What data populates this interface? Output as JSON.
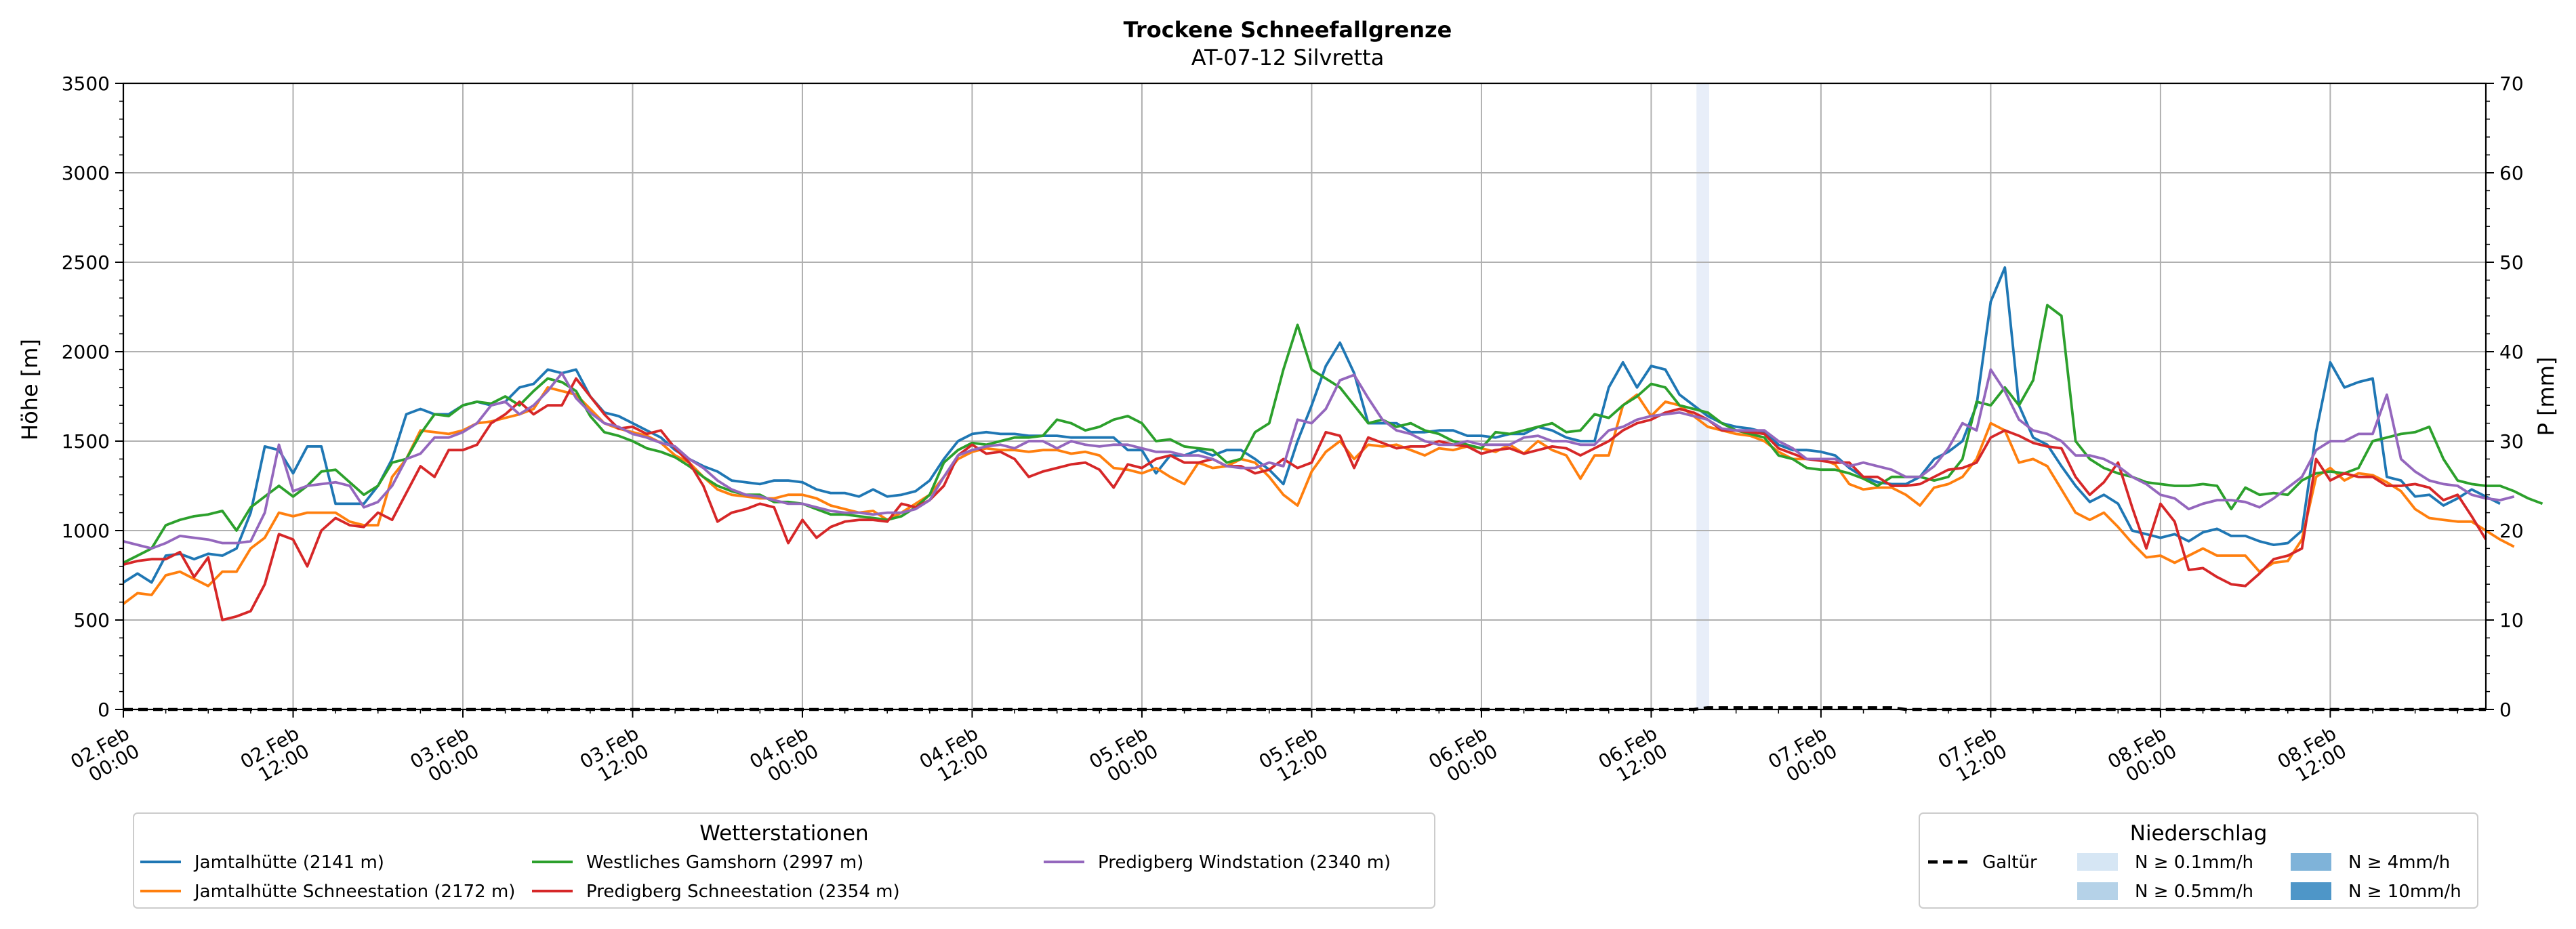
{
  "chart_data": {
    "type": "line",
    "title": "Trockene Schneefallgrenze",
    "subtitle": "AT-07-12 Silvretta",
    "ylabel": "Höhe [m]",
    "y2label": "P [mm]",
    "ylim": [
      0,
      3500
    ],
    "y2lim": [
      0,
      70
    ],
    "yticks": [
      "0",
      "500",
      "1000",
      "1500",
      "2000",
      "2500",
      "3000",
      "3500"
    ],
    "y2ticks": [
      "0",
      "10",
      "20",
      "30",
      "40",
      "50",
      "60",
      "70"
    ],
    "xrange_hours": [
      0,
      167
    ],
    "x_step_hours": 1,
    "xticks": [
      {
        "h": 0,
        "label": [
          "02.Feb",
          "00:00"
        ]
      },
      {
        "h": 12,
        "label": [
          "02.Feb",
          "12:00"
        ]
      },
      {
        "h": 24,
        "label": [
          "03.Feb",
          "00:00"
        ]
      },
      {
        "h": 36,
        "label": [
          "03.Feb",
          "12:00"
        ]
      },
      {
        "h": 48,
        "label": [
          "04.Feb",
          "00:00"
        ]
      },
      {
        "h": 60,
        "label": [
          "04.Feb",
          "12:00"
        ]
      },
      {
        "h": 72,
        "label": [
          "05.Feb",
          "00:00"
        ]
      },
      {
        "h": 84,
        "label": [
          "05.Feb",
          "12:00"
        ]
      },
      {
        "h": 96,
        "label": [
          "06.Feb",
          "00:00"
        ]
      },
      {
        "h": 108,
        "label": [
          "06.Feb",
          "12:00"
        ]
      },
      {
        "h": 120,
        "label": [
          "07.Feb",
          "00:00"
        ]
      },
      {
        "h": 132,
        "label": [
          "07.Feb",
          "12:00"
        ]
      },
      {
        "h": 144,
        "label": [
          "08.Feb",
          "00:00"
        ]
      },
      {
        "h": 156,
        "label": [
          "08.Feb",
          "12:00"
        ]
      }
    ],
    "grid": true,
    "precip_span": {
      "start_h": 111.2,
      "end_h": 112.1,
      "color": "#e8eef9"
    },
    "precip_station": {
      "name": "Galtür",
      "hours": [
        0,
        111,
        112,
        125,
        126,
        127,
        167
      ],
      "values": [
        0,
        0,
        0.2,
        0.2,
        0,
        0,
        0
      ]
    },
    "legend_stations": {
      "title": "Wetterstationen",
      "placement": "bottom-left"
    },
    "legend_precip": {
      "title": "Niederschlag",
      "placement": "bottom-right",
      "items": [
        {
          "label": "N ≥ 0.1mm/h",
          "color": "#d6e6f4"
        },
        {
          "label": "N ≥ 0.5mm/h",
          "color": "#b5d2e8"
        },
        {
          "label": "N ≥ 4mm/h",
          "color": "#7fb3d9"
        },
        {
          "label": "N ≥ 10mm/h",
          "color": "#4e96c8"
        }
      ]
    },
    "series": [
      {
        "name": "Jamtalhütte (2141 m)",
        "color": "#1f77b4",
        "values": [
          710,
          760,
          710,
          860,
          870,
          840,
          870,
          860,
          900,
          1100,
          1470,
          1450,
          1320,
          1470,
          1470,
          1150,
          1150,
          1150,
          1250,
          1400,
          1650,
          1680,
          1650,
          1650,
          1700,
          1720,
          1700,
          1720,
          1800,
          1820,
          1900,
          1880,
          1900,
          1750,
          1660,
          1640,
          1600,
          1560,
          1520,
          1450,
          1400,
          1360,
          1330,
          1280,
          1270,
          1260,
          1280,
          1280,
          1270,
          1230,
          1210,
          1210,
          1190,
          1230,
          1190,
          1200,
          1220,
          1280,
          1400,
          1500,
          1540,
          1550,
          1540,
          1540,
          1530,
          1530,
          1530,
          1520,
          1520,
          1520,
          1520,
          1450,
          1450,
          1320,
          1420,
          1420,
          1450,
          1420,
          1450,
          1450,
          1400,
          1340,
          1260,
          1500,
          1700,
          1920,
          2050,
          1880,
          1600,
          1600,
          1600,
          1550,
          1550,
          1560,
          1560,
          1530,
          1530,
          1520,
          1540,
          1540,
          1580,
          1560,
          1520,
          1500,
          1500,
          1800,
          1940,
          1800,
          1920,
          1900,
          1760,
          1700,
          1640,
          1600,
          1580,
          1570,
          1550,
          1480,
          1450,
          1450,
          1440,
          1420,
          1350,
          1300,
          1270,
          1260,
          1260,
          1300,
          1400,
          1440,
          1500,
          1700,
          2280,
          2470,
          1700,
          1520,
          1480,
          1360,
          1250,
          1160,
          1200,
          1150,
          1000,
          980,
          960,
          980,
          940,
          990,
          1010,
          970,
          970,
          940,
          920,
          930,
          1000,
          1550,
          1940,
          1800,
          1830,
          1850,
          1300,
          1280,
          1190,
          1200,
          1140,
          1180,
          1230,
          1190,
          1150
        ]
      },
      {
        "name": "Jamtalhütte Schneestation (2172 m)",
        "color": "#ff7f0e",
        "values": [
          590,
          650,
          640,
          750,
          770,
          730,
          690,
          770,
          770,
          900,
          960,
          1100,
          1080,
          1100,
          1100,
          1100,
          1050,
          1030,
          1030,
          1300,
          1400,
          1560,
          1550,
          1540,
          1560,
          1600,
          1610,
          1630,
          1650,
          1680,
          1800,
          1780,
          1760,
          1680,
          1600,
          1570,
          1550,
          1530,
          1490,
          1420,
          1380,
          1300,
          1230,
          1200,
          1190,
          1180,
          1180,
          1200,
          1200,
          1180,
          1140,
          1120,
          1100,
          1110,
          1060,
          1100,
          1150,
          1200,
          1300,
          1400,
          1440,
          1460,
          1450,
          1450,
          1440,
          1450,
          1450,
          1430,
          1440,
          1420,
          1350,
          1340,
          1320,
          1350,
          1300,
          1260,
          1380,
          1350,
          1360,
          1400,
          1380,
          1300,
          1200,
          1140,
          1330,
          1440,
          1500,
          1400,
          1480,
          1470,
          1480,
          1450,
          1420,
          1460,
          1450,
          1470,
          1460,
          1440,
          1480,
          1430,
          1500,
          1450,
          1420,
          1290,
          1420,
          1420,
          1700,
          1760,
          1640,
          1720,
          1700,
          1640,
          1580,
          1560,
          1540,
          1530,
          1500,
          1440,
          1400,
          1400,
          1400,
          1370,
          1260,
          1230,
          1240,
          1240,
          1200,
          1140,
          1240,
          1260,
          1300,
          1400,
          1600,
          1560,
          1380,
          1400,
          1360,
          1230,
          1100,
          1060,
          1100,
          1020,
          930,
          850,
          860,
          820,
          860,
          900,
          860,
          860,
          860,
          770,
          820,
          830,
          950,
          1300,
          1350,
          1280,
          1320,
          1310,
          1270,
          1220,
          1120,
          1070,
          1060,
          1050,
          1050,
          1000,
          950,
          910
        ]
      },
      {
        "name": "Westliches Gamshorn (2997 m)",
        "color": "#2ca02c",
        "values": [
          820,
          860,
          900,
          1030,
          1060,
          1080,
          1090,
          1110,
          1000,
          1130,
          1190,
          1250,
          1190,
          1250,
          1330,
          1340,
          1270,
          1200,
          1250,
          1380,
          1400,
          1540,
          1650,
          1640,
          1700,
          1720,
          1710,
          1750,
          1700,
          1780,
          1850,
          1830,
          1780,
          1640,
          1550,
          1530,
          1500,
          1460,
          1440,
          1410,
          1360,
          1300,
          1250,
          1220,
          1200,
          1200,
          1160,
          1160,
          1150,
          1120,
          1090,
          1090,
          1080,
          1070,
          1060,
          1080,
          1130,
          1200,
          1380,
          1450,
          1490,
          1480,
          1500,
          1520,
          1520,
          1530,
          1620,
          1600,
          1560,
          1580,
          1620,
          1640,
          1600,
          1500,
          1510,
          1470,
          1460,
          1450,
          1380,
          1400,
          1550,
          1600,
          1900,
          2150,
          1900,
          1850,
          1800,
          1700,
          1600,
          1620,
          1580,
          1600,
          1560,
          1540,
          1500,
          1480,
          1460,
          1550,
          1540,
          1560,
          1580,
          1600,
          1550,
          1560,
          1650,
          1630,
          1700,
          1750,
          1820,
          1800,
          1700,
          1680,
          1660,
          1600,
          1560,
          1540,
          1520,
          1420,
          1400,
          1350,
          1340,
          1340,
          1320,
          1290,
          1250,
          1300,
          1300,
          1300,
          1280,
          1300,
          1400,
          1720,
          1700,
          1800,
          1700,
          1840,
          2260,
          2200,
          1500,
          1400,
          1350,
          1320,
          1300,
          1270,
          1260,
          1250,
          1250,
          1260,
          1250,
          1120,
          1240,
          1200,
          1210,
          1200,
          1280,
          1320,
          1330,
          1320,
          1350,
          1500,
          1520,
          1540,
          1550,
          1580,
          1400,
          1280,
          1260,
          1250,
          1250,
          1220,
          1180,
          1150
        ]
      },
      {
        "name": "Predigberg Schneestation (2354 m)",
        "color": "#d62728",
        "values": [
          810,
          830,
          840,
          840,
          880,
          740,
          850,
          500,
          520,
          550,
          700,
          980,
          950,
          800,
          1000,
          1070,
          1030,
          1020,
          1100,
          1060,
          1210,
          1360,
          1300,
          1450,
          1450,
          1480,
          1600,
          1650,
          1720,
          1650,
          1700,
          1700,
          1850,
          1750,
          1650,
          1570,
          1580,
          1540,
          1560,
          1460,
          1380,
          1250,
          1050,
          1100,
          1120,
          1150,
          1130,
          930,
          1060,
          960,
          1020,
          1050,
          1060,
          1060,
          1050,
          1150,
          1130,
          1170,
          1250,
          1420,
          1480,
          1430,
          1440,
          1400,
          1300,
          1330,
          1350,
          1370,
          1380,
          1340,
          1240,
          1370,
          1350,
          1400,
          1420,
          1380,
          1380,
          1400,
          1360,
          1360,
          1320,
          1340,
          1400,
          1350,
          1380,
          1550,
          1530,
          1350,
          1520,
          1490,
          1460,
          1470,
          1470,
          1500,
          1480,
          1470,
          1430,
          1450,
          1460,
          1430,
          1450,
          1470,
          1460,
          1420,
          1460,
          1500,
          1560,
          1600,
          1620,
          1660,
          1680,
          1660,
          1620,
          1560,
          1560,
          1550,
          1540,
          1460,
          1430,
          1400,
          1390,
          1380,
          1380,
          1300,
          1300,
          1250,
          1250,
          1260,
          1300,
          1340,
          1350,
          1380,
          1520,
          1560,
          1530,
          1490,
          1470,
          1460,
          1300,
          1200,
          1270,
          1380,
          1130,
          900,
          1150,
          1050,
          780,
          790,
          740,
          700,
          690,
          760,
          840,
          860,
          900,
          1400,
          1280,
          1320,
          1300,
          1300,
          1250,
          1250,
          1260,
          1240,
          1170,
          1200,
          1080,
          950
        ]
      },
      {
        "name": "Predigberg Windstation (2340 m)",
        "color": "#9467bd",
        "values": [
          940,
          920,
          900,
          930,
          970,
          960,
          950,
          930,
          930,
          940,
          1100,
          1480,
          1220,
          1250,
          1260,
          1270,
          1250,
          1130,
          1160,
          1250,
          1400,
          1430,
          1520,
          1520,
          1550,
          1600,
          1700,
          1720,
          1650,
          1700,
          1780,
          1880,
          1740,
          1660,
          1600,
          1580,
          1540,
          1520,
          1490,
          1470,
          1400,
          1350,
          1280,
          1230,
          1200,
          1190,
          1170,
          1150,
          1150,
          1130,
          1110,
          1100,
          1100,
          1090,
          1100,
          1100,
          1120,
          1170,
          1300,
          1420,
          1450,
          1470,
          1480,
          1460,
          1500,
          1500,
          1460,
          1500,
          1480,
          1470,
          1480,
          1480,
          1460,
          1440,
          1440,
          1420,
          1420,
          1400,
          1360,
          1350,
          1350,
          1380,
          1360,
          1620,
          1600,
          1680,
          1840,
          1870,
          1740,
          1620,
          1560,
          1540,
          1500,
          1480,
          1480,
          1500,
          1480,
          1480,
          1480,
          1520,
          1530,
          1500,
          1500,
          1480,
          1480,
          1560,
          1580,
          1620,
          1640,
          1650,
          1660,
          1640,
          1620,
          1570,
          1560,
          1560,
          1560,
          1500,
          1460,
          1400,
          1400,
          1400,
          1360,
          1380,
          1360,
          1340,
          1300,
          1300,
          1360,
          1460,
          1600,
          1560,
          1900,
          1780,
          1620,
          1560,
          1540,
          1500,
          1420,
          1420,
          1400,
          1360,
          1300,
          1260,
          1200,
          1180,
          1120,
          1150,
          1170,
          1170,
          1160,
          1130,
          1180,
          1240,
          1300,
          1450,
          1500,
          1500,
          1540,
          1540,
          1760,
          1400,
          1330,
          1280,
          1260,
          1250,
          1200,
          1180,
          1170,
          1190
        ]
      }
    ]
  }
}
